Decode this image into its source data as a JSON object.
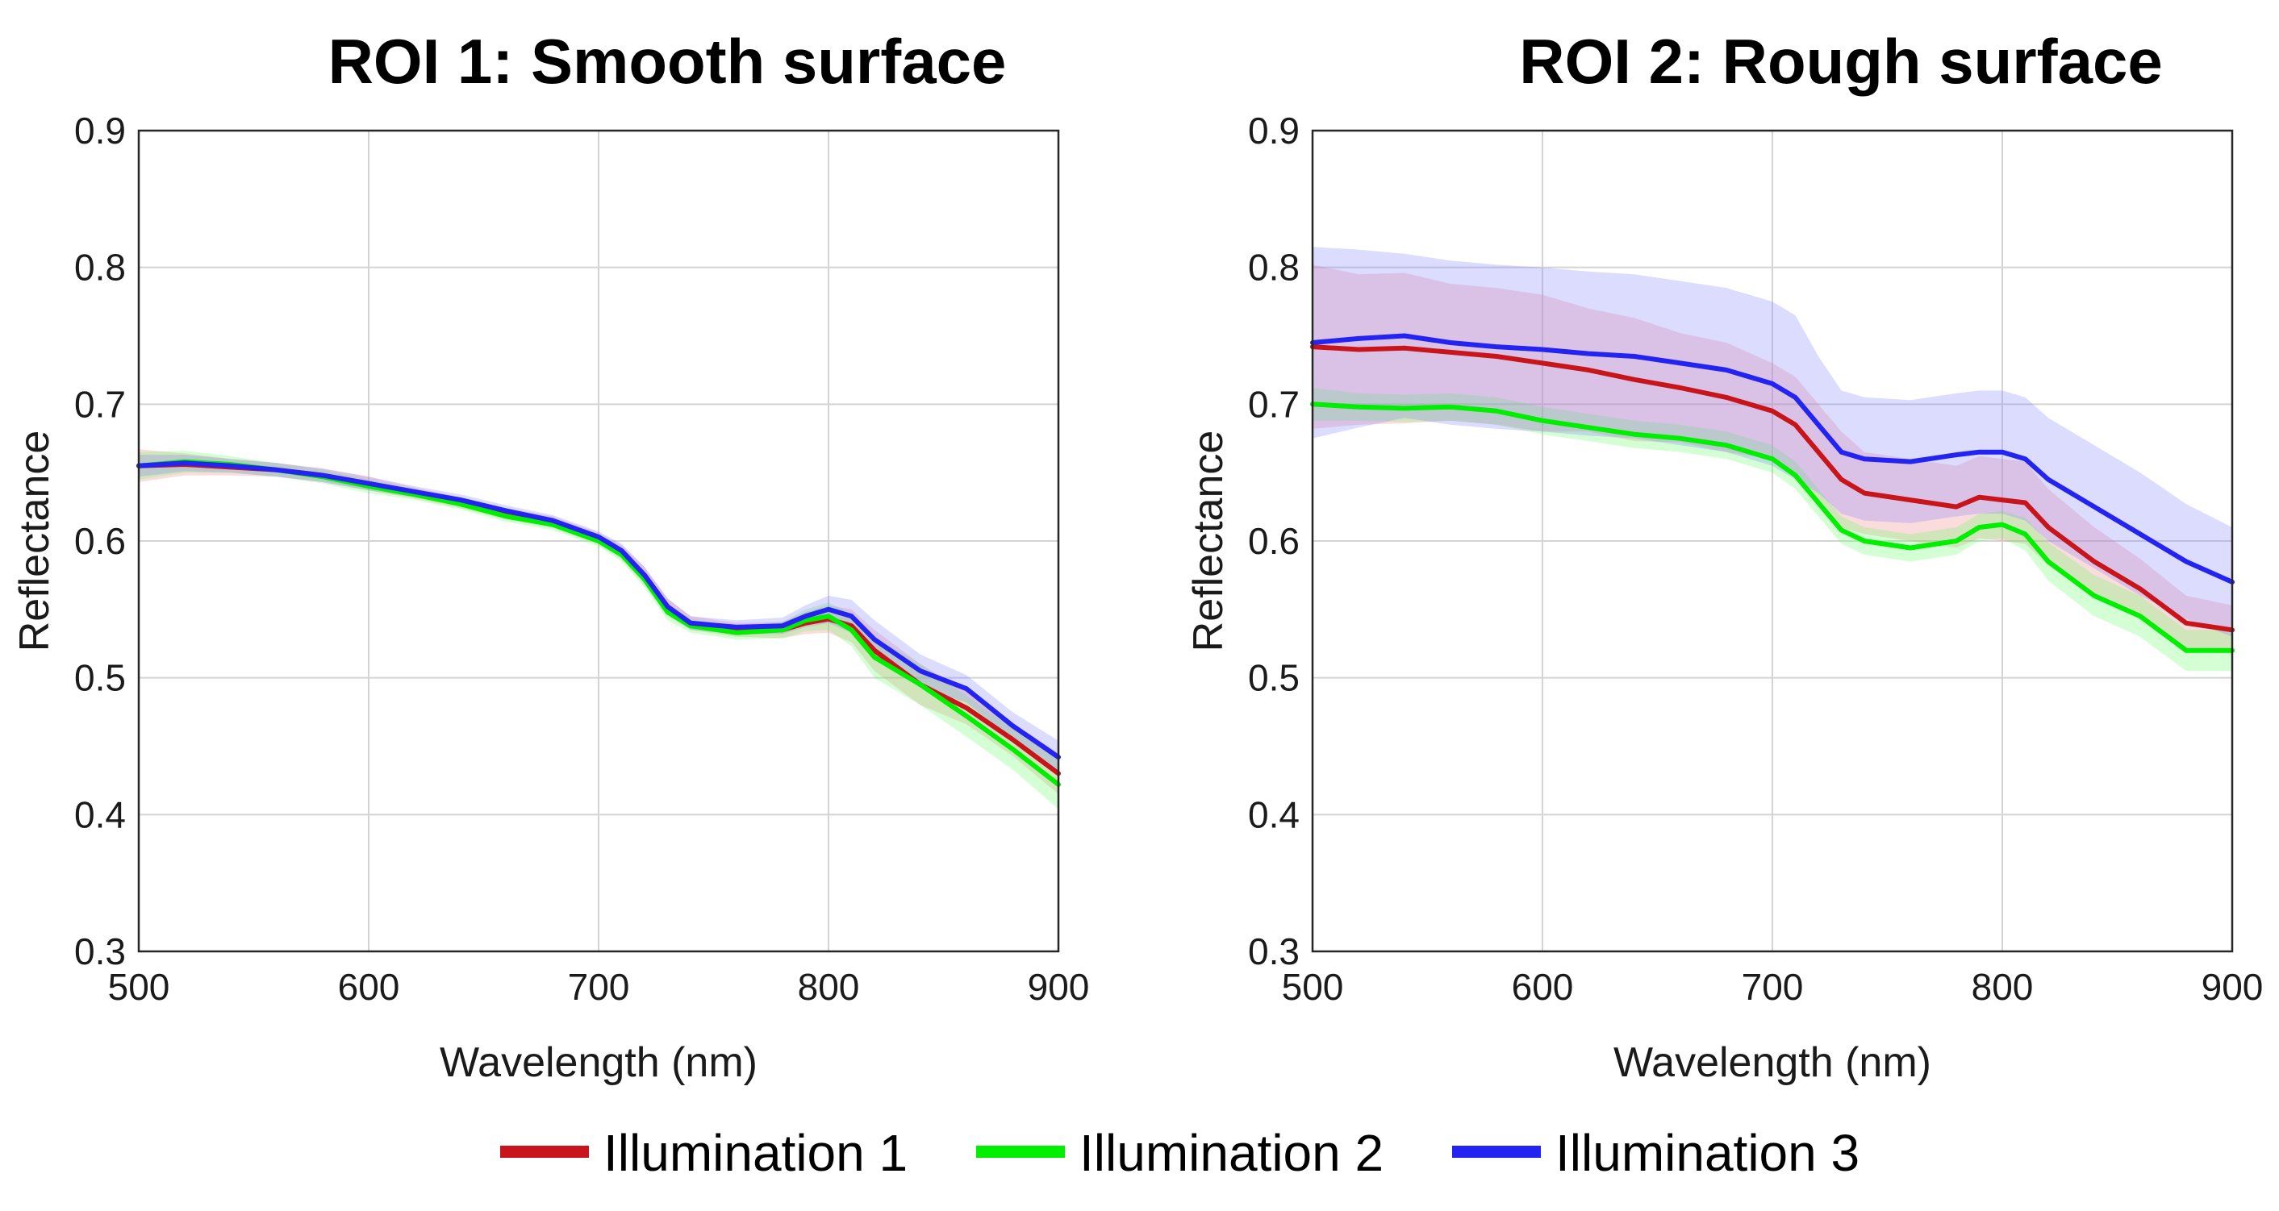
{
  "chart_data": [
    {
      "type": "line",
      "title": "ROI 1: Smooth surface",
      "xlabel": "Wavelength (nm)",
      "ylabel": "Reflectance",
      "xlim": [
        500,
        900
      ],
      "ylim": [
        0.3,
        0.9
      ],
      "xticks": [
        500,
        600,
        700,
        800,
        900
      ],
      "yticks": [
        0.3,
        0.4,
        0.5,
        0.6,
        0.7,
        0.8,
        0.9
      ],
      "xtick_labels": [
        "500",
        "600",
        "700",
        "800",
        "900"
      ],
      "ytick_labels": [
        "0.3",
        "0.4",
        "0.5",
        "0.6",
        "0.7",
        "0.8",
        "0.9"
      ],
      "grid": true,
      "shaded_band": "± spread around each mean curve",
      "x": [
        500,
        520,
        540,
        560,
        580,
        600,
        620,
        640,
        660,
        680,
        700,
        710,
        720,
        730,
        740,
        760,
        780,
        790,
        800,
        810,
        820,
        840,
        860,
        880,
        900
      ],
      "series": [
        {
          "name": "Illumination 1",
          "values": [
            0.655,
            0.656,
            0.654,
            0.652,
            0.648,
            0.642,
            0.635,
            0.628,
            0.62,
            0.614,
            0.602,
            0.592,
            0.575,
            0.552,
            0.54,
            0.535,
            0.535,
            0.54,
            0.543,
            0.538,
            0.52,
            0.495,
            0.478,
            0.455,
            0.43
          ],
          "band_halfwidth": [
            0.012,
            0.008,
            0.006,
            0.005,
            0.005,
            0.005,
            0.004,
            0.004,
            0.004,
            0.004,
            0.004,
            0.005,
            0.006,
            0.006,
            0.005,
            0.005,
            0.006,
            0.008,
            0.01,
            0.012,
            0.015,
            0.015,
            0.012,
            0.012,
            0.015
          ]
        },
        {
          "name": "Illumination 2",
          "values": [
            0.655,
            0.658,
            0.656,
            0.652,
            0.647,
            0.64,
            0.634,
            0.627,
            0.618,
            0.612,
            0.6,
            0.59,
            0.572,
            0.548,
            0.538,
            0.533,
            0.535,
            0.542,
            0.545,
            0.535,
            0.515,
            0.495,
            0.472,
            0.448,
            0.422
          ],
          "band_halfwidth": [
            0.01,
            0.008,
            0.006,
            0.005,
            0.005,
            0.005,
            0.004,
            0.004,
            0.004,
            0.004,
            0.004,
            0.005,
            0.006,
            0.006,
            0.005,
            0.005,
            0.006,
            0.008,
            0.01,
            0.012,
            0.015,
            0.015,
            0.015,
            0.015,
            0.018
          ]
        },
        {
          "name": "Illumination 3",
          "values": [
            0.655,
            0.657,
            0.655,
            0.652,
            0.648,
            0.642,
            0.636,
            0.63,
            0.622,
            0.615,
            0.603,
            0.593,
            0.575,
            0.552,
            0.54,
            0.537,
            0.538,
            0.545,
            0.55,
            0.545,
            0.528,
            0.505,
            0.492,
            0.465,
            0.442
          ],
          "band_halfwidth": [
            0.008,
            0.006,
            0.005,
            0.005,
            0.005,
            0.005,
            0.004,
            0.004,
            0.004,
            0.004,
            0.004,
            0.005,
            0.006,
            0.006,
            0.005,
            0.005,
            0.006,
            0.008,
            0.01,
            0.012,
            0.014,
            0.012,
            0.01,
            0.01,
            0.012
          ]
        }
      ]
    },
    {
      "type": "line",
      "title": "ROI 2: Rough surface",
      "xlabel": "Wavelength (nm)",
      "ylabel": "Reflectance",
      "xlim": [
        500,
        900
      ],
      "ylim": [
        0.3,
        0.9
      ],
      "xticks": [
        500,
        600,
        700,
        800,
        900
      ],
      "yticks": [
        0.3,
        0.4,
        0.5,
        0.6,
        0.7,
        0.8,
        0.9
      ],
      "xtick_labels": [
        "500",
        "600",
        "700",
        "800",
        "900"
      ],
      "ytick_labels": [
        "0.3",
        "0.4",
        "0.5",
        "0.6",
        "0.7",
        "0.8",
        "0.9"
      ],
      "grid": true,
      "shaded_band": "± spread around each mean curve",
      "x": [
        500,
        520,
        540,
        560,
        580,
        600,
        620,
        640,
        660,
        680,
        700,
        710,
        720,
        730,
        740,
        760,
        780,
        790,
        800,
        810,
        820,
        840,
        860,
        880,
        900
      ],
      "series": [
        {
          "name": "Illumination 1",
          "values": [
            0.742,
            0.74,
            0.741,
            0.738,
            0.735,
            0.73,
            0.725,
            0.718,
            0.712,
            0.705,
            0.695,
            0.685,
            0.665,
            0.645,
            0.635,
            0.63,
            0.625,
            0.632,
            0.63,
            0.628,
            0.61,
            0.585,
            0.565,
            0.54,
            0.535
          ],
          "band_halfwidth": [
            0.06,
            0.055,
            0.055,
            0.05,
            0.05,
            0.05,
            0.045,
            0.045,
            0.04,
            0.04,
            0.035,
            0.035,
            0.035,
            0.035,
            0.03,
            0.03,
            0.03,
            0.03,
            0.03,
            0.03,
            0.028,
            0.025,
            0.022,
            0.02,
            0.018
          ]
        },
        {
          "name": "Illumination 2",
          "values": [
            0.7,
            0.698,
            0.697,
            0.698,
            0.695,
            0.688,
            0.683,
            0.678,
            0.675,
            0.67,
            0.66,
            0.648,
            0.628,
            0.608,
            0.6,
            0.595,
            0.6,
            0.61,
            0.612,
            0.605,
            0.585,
            0.56,
            0.545,
            0.52,
            0.52
          ],
          "band_halfwidth": [
            0.012,
            0.01,
            0.01,
            0.01,
            0.01,
            0.01,
            0.01,
            0.01,
            0.01,
            0.01,
            0.01,
            0.01,
            0.01,
            0.01,
            0.01,
            0.01,
            0.01,
            0.01,
            0.01,
            0.012,
            0.014,
            0.015,
            0.015,
            0.015,
            0.015
          ]
        },
        {
          "name": "Illumination 3",
          "values": [
            0.745,
            0.748,
            0.75,
            0.745,
            0.742,
            0.74,
            0.737,
            0.735,
            0.73,
            0.725,
            0.715,
            0.705,
            0.685,
            0.665,
            0.66,
            0.658,
            0.663,
            0.665,
            0.665,
            0.66,
            0.645,
            0.625,
            0.605,
            0.585,
            0.57
          ],
          "band_halfwidth": [
            0.07,
            0.065,
            0.06,
            0.06,
            0.06,
            0.06,
            0.06,
            0.06,
            0.06,
            0.06,
            0.06,
            0.06,
            0.05,
            0.045,
            0.045,
            0.045,
            0.045,
            0.045,
            0.045,
            0.045,
            0.045,
            0.045,
            0.045,
            0.042,
            0.04
          ]
        }
      ]
    }
  ],
  "legend": {
    "placement": "bottom-center",
    "items": [
      {
        "label": "Illumination 1",
        "color": "#c8151b"
      },
      {
        "label": "Illumination 2",
        "color": "#00ee00"
      },
      {
        "label": "Illumination 3",
        "color": "#2323f2"
      }
    ]
  },
  "band_colors": [
    "#f08080",
    "#66ff66",
    "#8080ff"
  ]
}
